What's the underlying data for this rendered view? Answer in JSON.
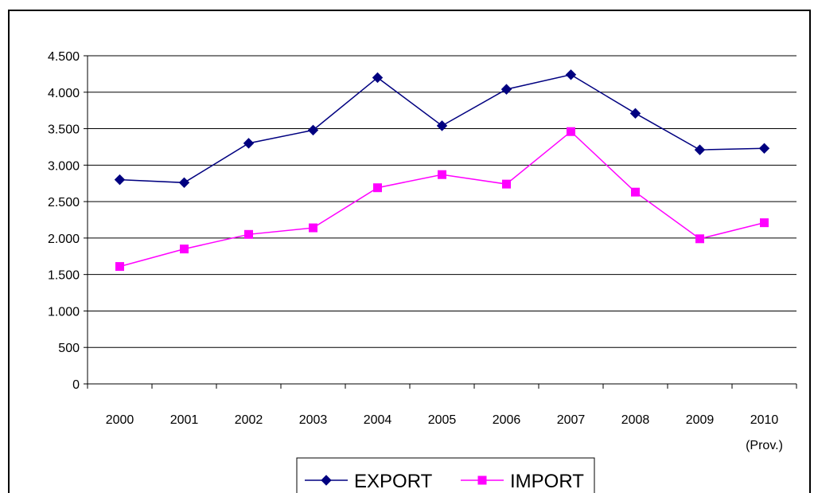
{
  "chart_data": {
    "type": "line",
    "categories": [
      "2000",
      "2001",
      "2002",
      "2003",
      "2004",
      "2005",
      "2006",
      "2007",
      "2008",
      "2009",
      "2010"
    ],
    "category_sublabels": {
      "2010": "(Prov.)"
    },
    "ylim": [
      0,
      4500
    ],
    "ytick_values": [
      0,
      500,
      1000,
      1500,
      2000,
      2500,
      3000,
      3500,
      4000,
      4500
    ],
    "ytick_labels": [
      "0",
      "500",
      "1.000",
      "1.500",
      "2.000",
      "2.500",
      "3.000",
      "3.500",
      "4.000",
      "4.500"
    ],
    "grid": true,
    "legend_position": "bottom",
    "series": [
      {
        "name": "EXPORT",
        "color": "#000080",
        "marker": "diamond",
        "values": [
          2800,
          2760,
          3300,
          3480,
          4200,
          3540,
          4040,
          4240,
          3710,
          3210,
          3230
        ]
      },
      {
        "name": "IMPORT",
        "color": "#FF00FF",
        "marker": "square",
        "values": [
          1610,
          1850,
          2050,
          2140,
          2690,
          2870,
          2740,
          3460,
          2630,
          1990,
          2210
        ]
      }
    ]
  }
}
